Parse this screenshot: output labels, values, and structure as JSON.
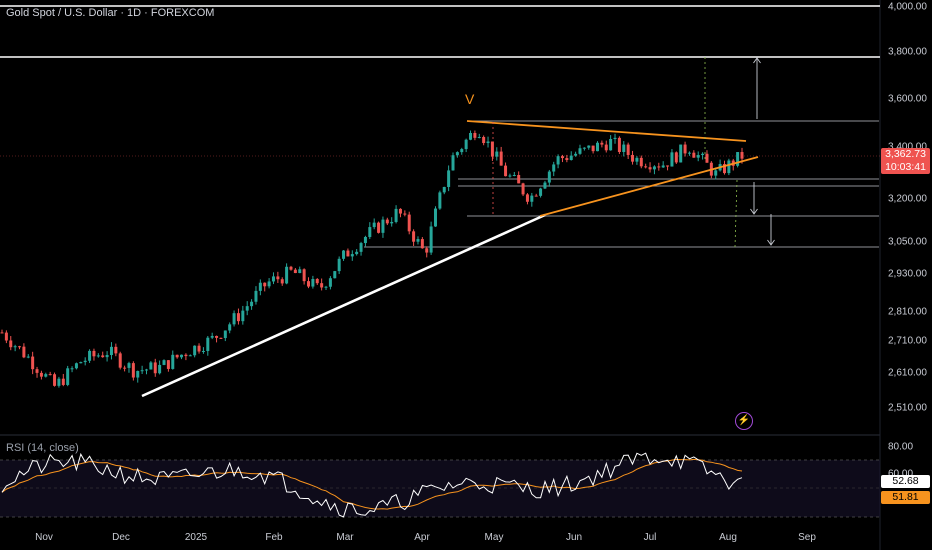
{
  "header": {
    "symbol_title": "Gold Spot / U.S. Dollar · 1D · FOREXCOM"
  },
  "rsi_panel": {
    "title": "RSI (14, close)",
    "value_rsi": "52.68",
    "value_ma": "51.81"
  },
  "price_tag": {
    "price": "3,362.73",
    "countdown": "10:03:41"
  },
  "annotations": {
    "pattern_label": "V"
  },
  "icons": {
    "flash": "lightning-icon"
  },
  "colors": {
    "up": "#26a69a",
    "down": "#ef5350",
    "trendline": "#ffffff",
    "wedge": "#f7931e",
    "rsi_line": "#ffffff",
    "rsi_ma": "#f7931e",
    "price_tag_bg": "#ef5350",
    "rsi_tag_bg": "#ffffff",
    "rsi_ma_tag_bg": "#f7931e"
  },
  "chart_data": {
    "type": "candlestick",
    "title": "Gold Spot / U.S. Dollar · 1D · FOREXCOM",
    "x_ticks": [
      "Nov",
      "Dec",
      "2025",
      "Feb",
      "Mar",
      "Apr",
      "May",
      "Jun",
      "Jul",
      "Aug",
      "Sep"
    ],
    "y_ticks": [
      "4,000.00",
      "3,800.00",
      "3,600.00",
      "3,400.00",
      "3,200.00",
      "3,050.00",
      "2,930.00",
      "2,810.00",
      "2,710.00",
      "2,610.00",
      "2,510.00"
    ],
    "y_scale": "log",
    "ylim": [
      2460,
      4030
    ],
    "last_price": 3362.73,
    "series": [
      {
        "name": "Gold Spot / U.S. Dollar",
        "type": "candlestick",
        "approx_path": [
          [
            "Nov",
            2740
          ],
          [
            "Nov",
            2660
          ],
          [
            "Nov",
            2570
          ],
          [
            "Dec",
            2650
          ],
          [
            "Dec",
            2680
          ],
          [
            "Dec",
            2620
          ],
          [
            "2025",
            2630
          ],
          [
            "2025",
            2680
          ],
          [
            "2025",
            2720
          ],
          [
            "Feb",
            2800
          ],
          [
            "Feb",
            2900
          ],
          [
            "Feb",
            2940
          ],
          [
            "Mar",
            2880
          ],
          [
            "Mar",
            3000
          ],
          [
            "Mar",
            3080
          ],
          [
            "Apr",
            3150
          ],
          [
            "Apr",
            3000
          ],
          [
            "Apr",
            3350
          ],
          [
            "Apr",
            3480
          ],
          [
            "May",
            3300
          ],
          [
            "May",
            3200
          ],
          [
            "May",
            3350
          ],
          [
            "Jun",
            3380
          ],
          [
            "Jun",
            3420
          ],
          [
            "Jul",
            3350
          ],
          [
            "Jul",
            3330
          ],
          [
            "Jul",
            3400
          ],
          [
            "Aug",
            3290
          ],
          [
            "Aug",
            3363
          ]
        ]
      },
      {
        "name": "RSI (14, close)",
        "last": 52.68
      },
      {
        "name": "RSI MA",
        "last": 51.81
      }
    ],
    "rsi_y_ticks": [
      "80.00",
      "60.00"
    ],
    "horizontal_levels": [
      4000,
      3780,
      3500,
      3290,
      3270,
      3130,
      3020
    ],
    "legend": "top-left"
  }
}
